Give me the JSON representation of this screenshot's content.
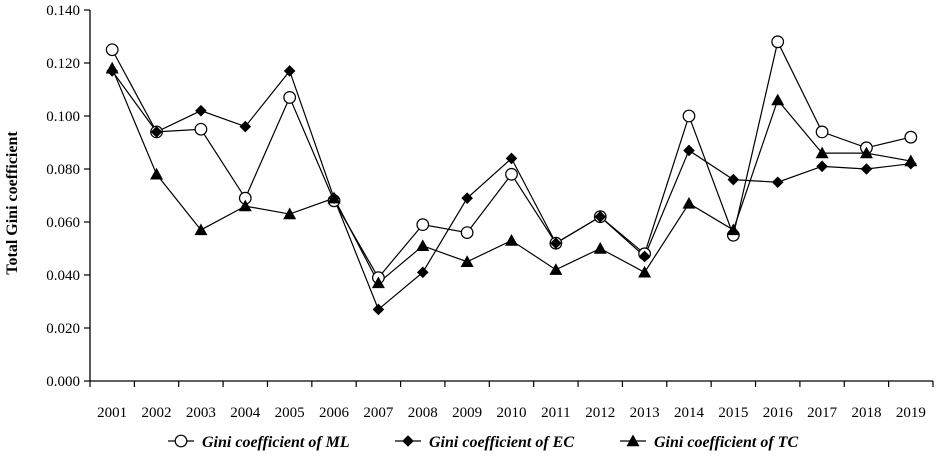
{
  "chart_data": {
    "type": "line",
    "title": "",
    "xlabel": "",
    "ylabel": "Total Gini coefficient",
    "ylim": [
      0,
      0.14
    ],
    "yticks": [
      "0.000",
      "0.020",
      "0.040",
      "0.060",
      "0.080",
      "0.100",
      "0.120",
      "0.140"
    ],
    "categories": [
      "2001",
      "2002",
      "2003",
      "2004",
      "2005",
      "2006",
      "2007",
      "2008",
      "2009",
      "2010",
      "2011",
      "2012",
      "2013",
      "2014",
      "2015",
      "2016",
      "2017",
      "2018",
      "2019"
    ],
    "grid": false,
    "legend_position": "bottom",
    "series": [
      {
        "name": "Gini coefficient of ML",
        "marker": "open-circle",
        "values": [
          0.125,
          0.094,
          0.095,
          0.069,
          0.107,
          0.068,
          0.039,
          0.059,
          0.056,
          0.078,
          0.052,
          0.062,
          0.048,
          0.1,
          0.055,
          0.128,
          0.094,
          0.088,
          0.092
        ]
      },
      {
        "name": "Gini coefficient of EC",
        "marker": "filled-diamond",
        "values": [
          0.117,
          0.094,
          0.102,
          0.096,
          0.117,
          0.069,
          0.027,
          0.041,
          0.069,
          0.084,
          0.052,
          0.062,
          0.047,
          0.087,
          0.076,
          0.075,
          0.081,
          0.08,
          0.082
        ]
      },
      {
        "name": "Gini coefficient of TC",
        "marker": "filled-triangle",
        "values": [
          0.118,
          0.078,
          0.057,
          0.066,
          0.063,
          0.069,
          0.037,
          0.051,
          0.045,
          0.053,
          0.042,
          0.05,
          0.041,
          0.067,
          0.057,
          0.106,
          0.086,
          0.086,
          0.083
        ]
      }
    ]
  }
}
